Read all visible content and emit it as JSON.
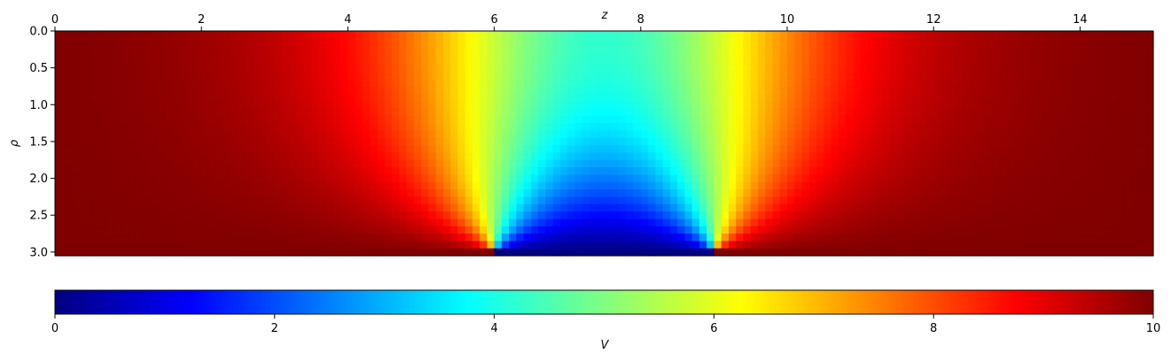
{
  "chart_data": [
    {
      "type": "heatmap",
      "title": "",
      "xlabel": "z",
      "ylabel": "ρ",
      "xlim": [
        0,
        15
      ],
      "ylim": [
        0,
        3.05
      ],
      "y_inverted": true,
      "x_axis_position": "top",
      "xticks": [
        0,
        2,
        4,
        6,
        8,
        10,
        12,
        14
      ],
      "xtick_labels": [
        "0",
        "2",
        "4",
        "6",
        "8",
        "10",
        "12",
        "14"
      ],
      "yticks": [
        0.0,
        0.5,
        1.0,
        1.5,
        2.0,
        2.5,
        3.0
      ],
      "ytick_labels": [
        "0.0",
        "0.5",
        "1.0",
        "1.5",
        "2.0",
        "2.5",
        "3.0"
      ],
      "grid": {
        "nz": 150,
        "nrho": 31
      },
      "colormap": "jet",
      "clim": [
        0,
        10
      ],
      "boundary": {
        "electrode_outer_voltage": 10,
        "electrode_center_voltage": 0,
        "center_electrode_z_range": [
          6,
          9
        ],
        "wall_rho": 3.0
      }
    },
    {
      "type": "colorbar",
      "label": "V",
      "orientation": "horizontal",
      "colormap": "jet",
      "range": [
        0,
        10
      ],
      "ticks": [
        0,
        2,
        4,
        6,
        8,
        10
      ],
      "tick_labels": [
        "0",
        "2",
        "4",
        "6",
        "8",
        "10"
      ]
    }
  ]
}
